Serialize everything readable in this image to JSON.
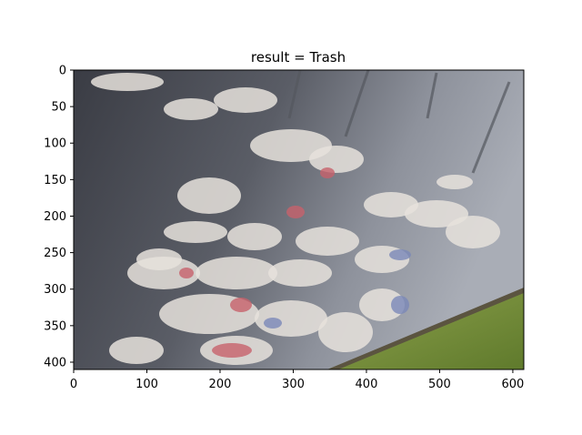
{
  "chart_data": {
    "type": "image",
    "title": "result = Trash",
    "image_width": 615,
    "image_height": 410,
    "xlim": [
      0,
      615
    ],
    "ylim": [
      410,
      0
    ],
    "x_ticks": [
      0,
      100,
      200,
      300,
      400,
      500,
      600
    ],
    "y_ticks": [
      0,
      50,
      100,
      150,
      200,
      250,
      300,
      350,
      400
    ],
    "content": "photo of newspapers and plastic trash floating on dark water beside a grassy bank",
    "colors": {
      "water_dark": "#3e4048",
      "water_light": "#9fa3ad",
      "grass": "#7e9440",
      "trash_light": "#e6e2dc",
      "trash_accent_red": "#c7626b",
      "trash_accent_blue": "#7b88b8"
    }
  }
}
